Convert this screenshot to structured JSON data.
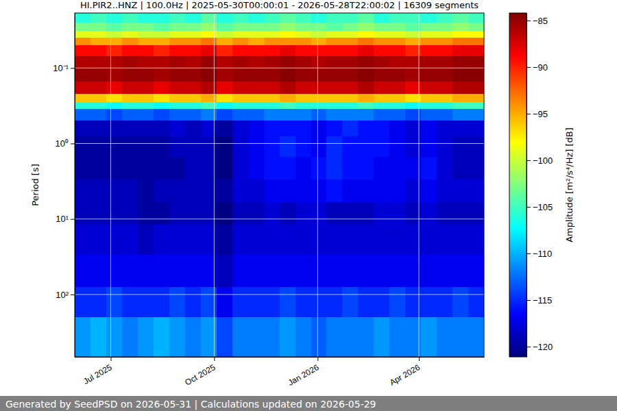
{
  "chart_data": {
    "type": "heatmap",
    "title": "HI.PIR2..HNZ | 100.0Hz | 2025-05-30T00:00:01 - 2026-05-28T22:00:02 | 16309 segments",
    "ylabel": "Period [s]",
    "log": "y",
    "grid": true,
    "xlim": [
      "2025-05-30T00:00:01",
      "2026-05-28T22:00:02"
    ],
    "xticks": [
      {
        "value": "2025-07-01",
        "label": "Jul 2025"
      },
      {
        "value": "2025-10-01",
        "label": "Oct 2025"
      },
      {
        "value": "2026-01-01",
        "label": "Jan 2026"
      },
      {
        "value": "2026-04-01",
        "label": "Apr 2026"
      }
    ],
    "ylim": [
      671,
      0.0187
    ],
    "yticks": [
      {
        "value": 0.1,
        "label": "10⁻¹"
      },
      {
        "value": 1,
        "label": "10⁰"
      },
      {
        "value": 10,
        "label": "10¹"
      },
      {
        "value": 100,
        "label": "10²"
      }
    ],
    "x_bins": [
      "2025-05-30T00:00:01",
      "2025-06-13",
      "2025-06-27",
      "2025-07-11",
      "2025-07-25",
      "2025-08-08",
      "2025-08-22",
      "2025-09-05",
      "2025-09-19",
      "2025-10-03",
      "2025-10-17",
      "2025-10-31",
      "2025-11-14",
      "2025-11-28",
      "2025-12-12",
      "2025-12-26",
      "2026-01-09",
      "2026-01-23",
      "2026-02-06",
      "2026-02-20",
      "2026-03-06",
      "2026-03-20",
      "2026-04-03",
      "2026-04-17",
      "2026-05-01",
      "2026-05-15",
      "2026-05-28T22:00:02"
    ],
    "y_bins": [
      0.0187,
      0.025,
      0.032,
      0.04,
      0.05,
      0.07,
      0.1,
      0.15,
      0.22,
      0.28,
      0.35,
      0.5,
      0.8,
      1.5,
      3,
      6,
      12,
      30,
      80,
      200,
      671
    ],
    "values": [
      [
        -106,
        -105,
        -106,
        -105,
        -106,
        -106,
        -105,
        -106,
        -104,
        -106,
        -105,
        -106,
        -105,
        -104,
        -105,
        -106,
        -105,
        -105,
        -104,
        -106,
        -105,
        -105,
        -106,
        -105,
        -104,
        -105
      ],
      [
        -103,
        -103,
        -104,
        -103,
        -103,
        -104,
        -103,
        -103,
        -102,
        -104,
        -103,
        -103,
        -103,
        -102,
        -103,
        -103,
        -104,
        -103,
        -102,
        -103,
        -103,
        -104,
        -103,
        -103,
        -102,
        -103
      ],
      [
        -99,
        -99,
        -100,
        -99,
        -100,
        -100,
        -99,
        -99,
        -98,
        -100,
        -99,
        -99,
        -99,
        -98,
        -99,
        -100,
        -99,
        -99,
        -98,
        -99,
        -99,
        -100,
        -99,
        -99,
        -98,
        -98
      ],
      [
        -94,
        -95,
        -95,
        -94,
        -95,
        -95,
        -94,
        -94,
        -93,
        -95,
        -94,
        -95,
        -94,
        -94,
        -94,
        -95,
        -94,
        -94,
        -93,
        -94,
        -94,
        -95,
        -94,
        -94,
        -93,
        -93
      ],
      [
        -89,
        -89,
        -90,
        -89,
        -89,
        -90,
        -89,
        -89,
        -88,
        -90,
        -89,
        -89,
        -89,
        -88,
        -89,
        -89,
        -89,
        -89,
        -88,
        -89,
        -89,
        -90,
        -89,
        -89,
        -88,
        -88
      ],
      [
        -86,
        -86,
        -86,
        -85.5,
        -86,
        -86,
        -85.5,
        -86,
        -85,
        -86,
        -85.5,
        -86,
        -85.5,
        -85,
        -85.5,
        -86,
        -85.5,
        -85.5,
        -85,
        -85.5,
        -86,
        -86,
        -85.5,
        -85.5,
        -85,
        -85
      ],
      [
        -85,
        -85,
        -85.5,
        -85,
        -85,
        -85.5,
        -85,
        -85,
        -84.5,
        -85.5,
        -85,
        -85,
        -85,
        -84.5,
        -85,
        -85,
        -85,
        -85,
        -84.5,
        -85,
        -85,
        -85.5,
        -85,
        -85,
        -84.5,
        -84.5
      ],
      [
        -87,
        -87,
        -88,
        -87,
        -87,
        -88,
        -87,
        -87,
        -86,
        -88,
        -87,
        -87,
        -87,
        -86,
        -87,
        -87,
        -87,
        -87,
        -86,
        -87,
        -87,
        -88,
        -87,
        -87,
        -86,
        -86
      ],
      [
        -96,
        -96,
        -97,
        -96,
        -96,
        -97,
        -96,
        -96,
        -95,
        -97,
        -96,
        -96,
        -96,
        -95,
        -96,
        -96,
        -96,
        -96,
        -95,
        -96,
        -96,
        -97,
        -96,
        -96,
        -95,
        -95
      ],
      [
        -106,
        -106,
        -107,
        -106,
        -106,
        -107,
        -106,
        -106,
        -105,
        -107,
        -106,
        -106,
        -106,
        -105,
        -106,
        -106,
        -106,
        -106,
        -105,
        -106,
        -106,
        -107,
        -106,
        -106,
        -105,
        -105
      ],
      [
        -113,
        -113,
        -114,
        -113,
        -113,
        -114,
        -113,
        -113,
        -112,
        -114,
        -113,
        -113,
        -112,
        -112,
        -112,
        -113,
        -112,
        -112,
        -112,
        -113,
        -113,
        -114,
        -113,
        -113,
        -112,
        -112
      ],
      [
        -119,
        -119,
        -119,
        -119,
        -119,
        -119,
        -118,
        -119,
        -118,
        -120,
        -118,
        -117,
        -116,
        -116,
        -116,
        -117,
        -116,
        -115,
        -116,
        -116,
        -117,
        -118,
        -117,
        -118,
        -118,
        -118
      ],
      [
        -120,
        -120,
        -120,
        -120,
        -120,
        -120,
        -119,
        -119,
        -119,
        -121,
        -118,
        -117,
        -116,
        -115,
        -116,
        -117,
        -115,
        -116,
        -116,
        -116,
        -117,
        -118,
        -117,
        -118,
        -119,
        -119
      ],
      [
        -120,
        -120,
        -120,
        -120,
        -120,
        -120,
        -120,
        -119,
        -119,
        -121,
        -118,
        -117,
        -116,
        -116,
        -117,
        -116,
        -115,
        -116,
        -116,
        -117,
        -117,
        -117,
        -116,
        -118,
        -119,
        -119
      ],
      [
        -119,
        -119,
        -119,
        -119,
        -120,
        -119,
        -119,
        -119,
        -119,
        -120,
        -118,
        -118,
        -117,
        -117,
        -117,
        -117,
        -116,
        -117,
        -117,
        -117,
        -117,
        -118,
        -117,
        -118,
        -118,
        -118
      ],
      [
        -119,
        -119,
        -119,
        -119,
        -120,
        -120,
        -119,
        -119,
        -119,
        -121,
        -119,
        -119,
        -118,
        -119,
        -118,
        -118,
        -119,
        -119,
        -119,
        -118,
        -118,
        -119,
        -118,
        -119,
        -119,
        -119
      ],
      [
        -118,
        -118,
        -118,
        -118,
        -119,
        -118,
        -118,
        -118,
        -118,
        -120,
        -118,
        -118,
        -118,
        -118,
        -118,
        -118,
        -118,
        -118,
        -118,
        -118,
        -118,
        -118,
        -118,
        -118,
        -118,
        -118
      ],
      [
        -117,
        -117,
        -117,
        -117,
        -117,
        -117,
        -117,
        -117,
        -117,
        -119,
        -117,
        -117,
        -117,
        -117,
        -117,
        -117,
        -117,
        -117,
        -117,
        -117,
        -117,
        -117,
        -117,
        -117,
        -117,
        -117
      ],
      [
        -115,
        -115,
        -114,
        -115,
        -115,
        -115,
        -114,
        -115,
        -114,
        -117,
        -115,
        -115,
        -115,
        -114,
        -115,
        -115,
        -115,
        -114,
        -115,
        -115,
        -114,
        -115,
        -115,
        -115,
        -114,
        -115
      ],
      [
        -111,
        -110,
        -111,
        -112,
        -111,
        -110,
        -111,
        -112,
        -111,
        -114,
        -112,
        -112,
        -112,
        -111,
        -112,
        -113,
        -112,
        -112,
        -112,
        -111,
        -112,
        -112,
        -111,
        -112,
        -112,
        -112
      ]
    ],
    "colorbar": {
      "label": "Amplitude [m²/s⁴/Hz] [dB]",
      "lim": [
        -121.1,
        -84.2
      ],
      "ticks": [
        -120,
        -115,
        -110,
        -105,
        -100,
        -95,
        -90,
        -85
      ]
    }
  },
  "footer": "Generated by SeedPSD on 2026-05-31 | Calculations updated on 2026-05-29"
}
